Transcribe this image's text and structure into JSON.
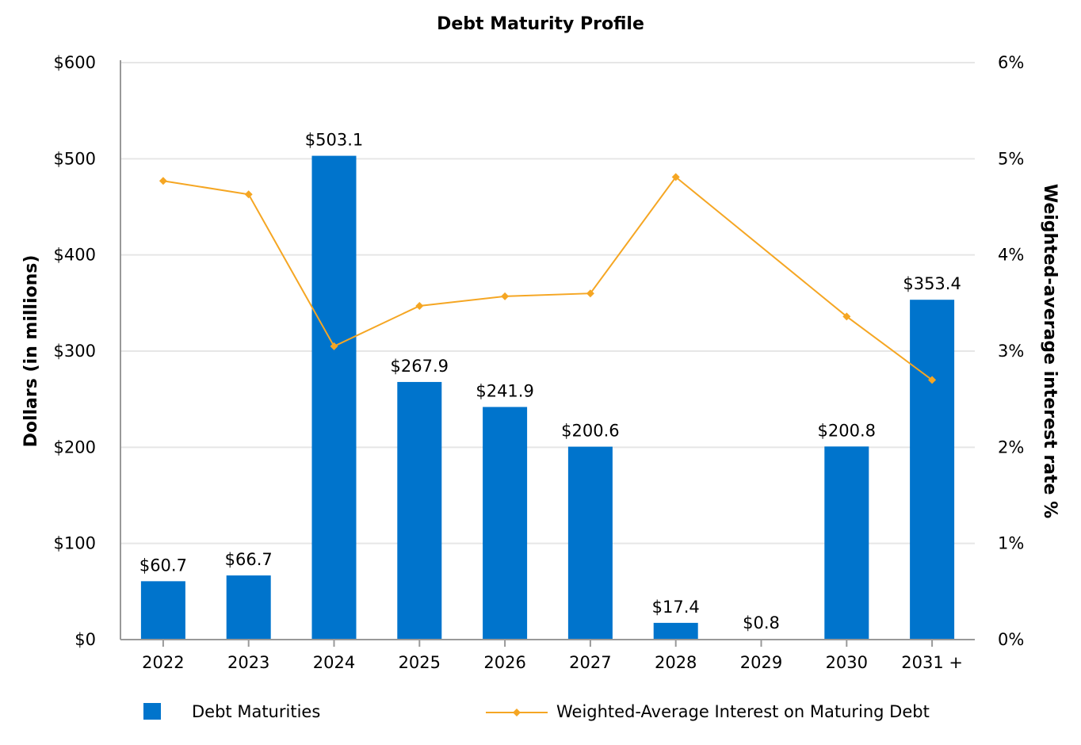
{
  "chart_data": {
    "type": "bar",
    "title": "Debt Maturity Profile",
    "categories": [
      "2022",
      "2023",
      "2024",
      "2025",
      "2026",
      "2027",
      "2028",
      "2029",
      "2030",
      "2031 +"
    ],
    "ylabel": "Dollars (in millions)",
    "y2label": "Weighted-average interest rate %",
    "ylim": [
      0,
      600
    ],
    "y2lim": [
      0,
      6
    ],
    "yticks": [
      "$0",
      "$100",
      "$200",
      "$300",
      "$400",
      "$500",
      "$600"
    ],
    "y2ticks": [
      "0%",
      "1%",
      "2%",
      "3%",
      "4%",
      "5%",
      "6%"
    ],
    "grid": true,
    "legend_position": "bottom",
    "series": [
      {
        "name": "Debt Maturities",
        "type": "bar",
        "axis": "left",
        "color": "#0074cc",
        "values": [
          60.7,
          66.7,
          503.1,
          267.9,
          241.9,
          200.6,
          17.4,
          0.8,
          200.8,
          353.4
        ],
        "labels": [
          "$60.7",
          "$66.7",
          "$503.1",
          "$267.9",
          "$241.9",
          "$200.6",
          "$17.4",
          "$0.8",
          "$200.8",
          "$353.4"
        ]
      },
      {
        "name": "Weighted-Average Interest on Maturing Debt",
        "type": "line",
        "axis": "right",
        "color": "#f5a623",
        "values": [
          4.77,
          4.63,
          3.05,
          3.47,
          3.57,
          3.6,
          4.81,
          null,
          3.36,
          2.7
        ]
      }
    ]
  }
}
